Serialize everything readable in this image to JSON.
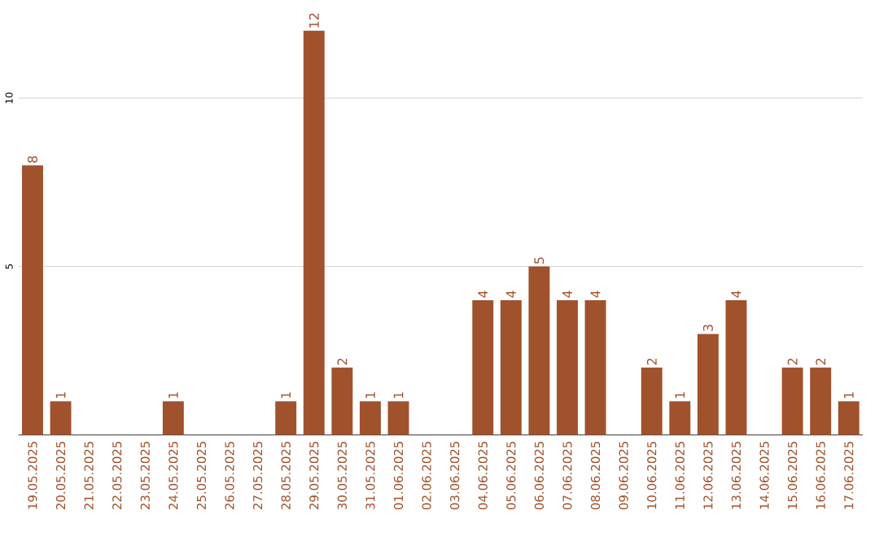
{
  "chart_data": {
    "type": "bar",
    "categories": [
      "19.05.2025",
      "20.05.2025",
      "21.05.2025",
      "22.05.2025",
      "23.05.2025",
      "24.05.2025",
      "25.05.2025",
      "26.05.2025",
      "27.05.2025",
      "28.05.2025",
      "29.05.2025",
      "30.05.2025",
      "31.05.2025",
      "01.06.2025",
      "02.06.2025",
      "03.06.2025",
      "04.06.2025",
      "05.06.2025",
      "06.06.2025",
      "07.06.2025",
      "08.06.2025",
      "09.06.2025",
      "10.06.2025",
      "11.06.2025",
      "12.06.2025",
      "13.06.2025",
      "14.06.2025",
      "15.06.2025",
      "16.06.2025",
      "17.06.2025"
    ],
    "values": [
      8,
      1,
      0,
      0,
      0,
      1,
      0,
      0,
      0,
      1,
      12,
      2,
      1,
      1,
      0,
      0,
      4,
      4,
      5,
      4,
      4,
      0,
      2,
      1,
      3,
      4,
      0,
      2,
      2,
      1
    ],
    "value_labels": [
      "8",
      "1",
      null,
      null,
      null,
      "1",
      null,
      null,
      null,
      "1",
      "12",
      "2",
      "1",
      "1",
      null,
      null,
      "4",
      "4",
      "5",
      "4",
      "4",
      null,
      "2",
      "1",
      "3",
      "4",
      null,
      "2",
      "2",
      "1"
    ],
    "color": "#a0522d",
    "ylim": [
      0,
      12
    ],
    "yticks": [
      5,
      10
    ],
    "grid": "y"
  }
}
